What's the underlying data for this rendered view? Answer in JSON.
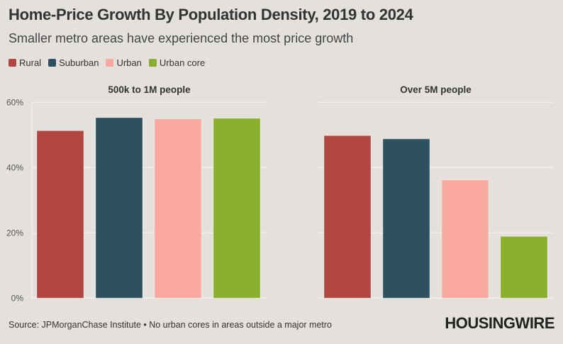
{
  "title": "Home-Price Growth By Population Density, 2019 to 2024",
  "subtitle": "Smaller metro areas have experienced the most price growth",
  "source": "Source: JPMorganChase Institute • No urban cores in areas outside a major metro",
  "logo": "HOUSINGWIRE",
  "chart_data": {
    "type": "bar",
    "categories": [
      "Rural",
      "Suburban",
      "Urban",
      "Urban core"
    ],
    "colors": [
      "#b0463f",
      "#2d5161",
      "#f9a8a0",
      "#8aae2d"
    ],
    "legend_position": "top-left",
    "ylim": [
      0,
      60
    ],
    "yticks": [
      "0%",
      "20%",
      "40%",
      "60%"
    ],
    "grid": true,
    "panels": [
      {
        "title": "500k to 1M people",
        "values": [
          51.3,
          55.3,
          54.9,
          55.1
        ]
      },
      {
        "title": "Over 5M people",
        "values": [
          49.8,
          48.8,
          36.2,
          18.9
        ]
      }
    ]
  }
}
